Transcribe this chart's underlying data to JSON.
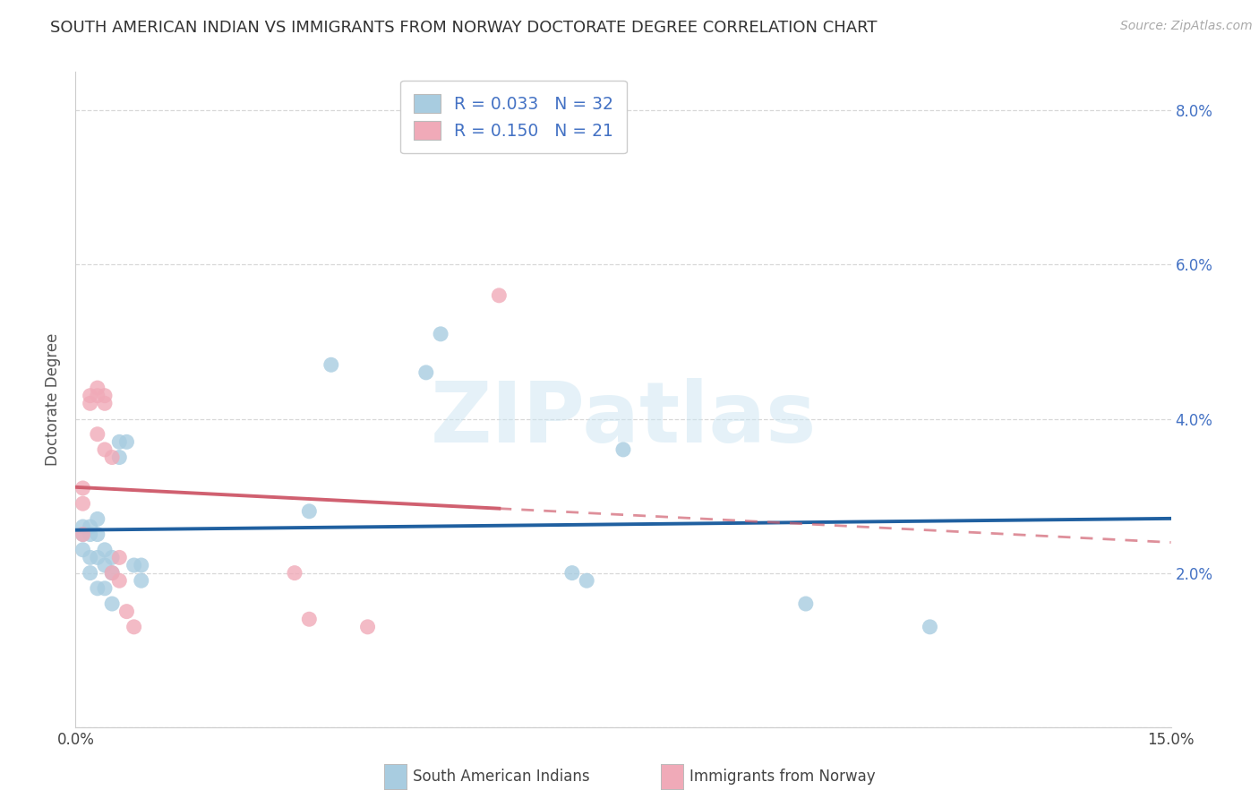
{
  "title": "SOUTH AMERICAN INDIAN VS IMMIGRANTS FROM NORWAY DOCTORATE DEGREE CORRELATION CHART",
  "source": "Source: ZipAtlas.com",
  "ylabel": "Doctorate Degree",
  "xmin": 0.0,
  "xmax": 0.15,
  "ymin": 0.0,
  "ymax": 0.085,
  "xtick_positions": [
    0.0,
    0.025,
    0.05,
    0.075,
    0.1,
    0.125,
    0.15
  ],
  "ytick_positions": [
    0.0,
    0.02,
    0.04,
    0.06,
    0.08
  ],
  "right_ytick_labels": [
    "",
    "2.0%",
    "4.0%",
    "6.0%",
    "8.0%"
  ],
  "legend_r1": "0.033",
  "legend_n1": "32",
  "legend_r2": "0.150",
  "legend_n2": "21",
  "blue_scatter_color": "#a8cce0",
  "pink_scatter_color": "#f0aab8",
  "trendline_blue_color": "#2060a0",
  "trendline_pink_color": "#d06070",
  "blue_points_x": [
    0.001,
    0.001,
    0.001,
    0.002,
    0.002,
    0.002,
    0.002,
    0.003,
    0.003,
    0.003,
    0.003,
    0.004,
    0.004,
    0.004,
    0.005,
    0.005,
    0.005,
    0.006,
    0.006,
    0.007,
    0.008,
    0.009,
    0.009,
    0.032,
    0.035,
    0.048,
    0.05,
    0.068,
    0.07,
    0.075,
    0.1,
    0.117
  ],
  "blue_points_y": [
    0.026,
    0.025,
    0.023,
    0.026,
    0.025,
    0.022,
    0.02,
    0.027,
    0.025,
    0.022,
    0.018,
    0.023,
    0.021,
    0.018,
    0.022,
    0.02,
    0.016,
    0.037,
    0.035,
    0.037,
    0.021,
    0.021,
    0.019,
    0.028,
    0.047,
    0.046,
    0.051,
    0.02,
    0.019,
    0.036,
    0.016,
    0.013
  ],
  "pink_points_x": [
    0.001,
    0.001,
    0.001,
    0.002,
    0.002,
    0.003,
    0.003,
    0.003,
    0.004,
    0.004,
    0.004,
    0.005,
    0.005,
    0.006,
    0.006,
    0.007,
    0.008,
    0.03,
    0.032,
    0.04,
    0.058
  ],
  "pink_points_y": [
    0.031,
    0.029,
    0.025,
    0.043,
    0.042,
    0.044,
    0.043,
    0.038,
    0.036,
    0.043,
    0.042,
    0.035,
    0.02,
    0.022,
    0.019,
    0.015,
    0.013,
    0.02,
    0.014,
    0.013,
    0.056
  ],
  "watermark_text": "ZIPatlas",
  "grid_color": "#d8d8d8",
  "bottom_label1": "South American Indians",
  "bottom_label2": "Immigrants from Norway",
  "title_fontsize": 13,
  "source_fontsize": 10,
  "tick_fontsize": 12,
  "ylabel_fontsize": 12
}
